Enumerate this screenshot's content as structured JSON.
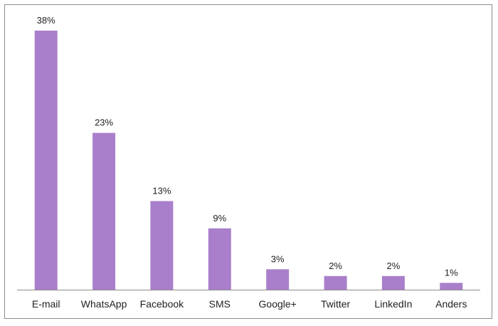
{
  "chart_data": {
    "type": "bar",
    "categories": [
      "E-mail",
      "WhatsApp",
      "Facebook",
      "SMS",
      "Google+",
      "Twitter",
      "LinkedIn",
      "Anders"
    ],
    "values": [
      38,
      23,
      13,
      9,
      3,
      2,
      2,
      1
    ],
    "value_labels": [
      "38%",
      "23%",
      "13%",
      "9%",
      "3%",
      "2%",
      "2%",
      "1%"
    ],
    "title": "",
    "xlabel": "",
    "ylabel": "",
    "ylim": [
      0,
      38
    ],
    "grid": false,
    "legend": "none",
    "bar_color": "#a97fcb",
    "axis_color": "#8c8c8c"
  }
}
